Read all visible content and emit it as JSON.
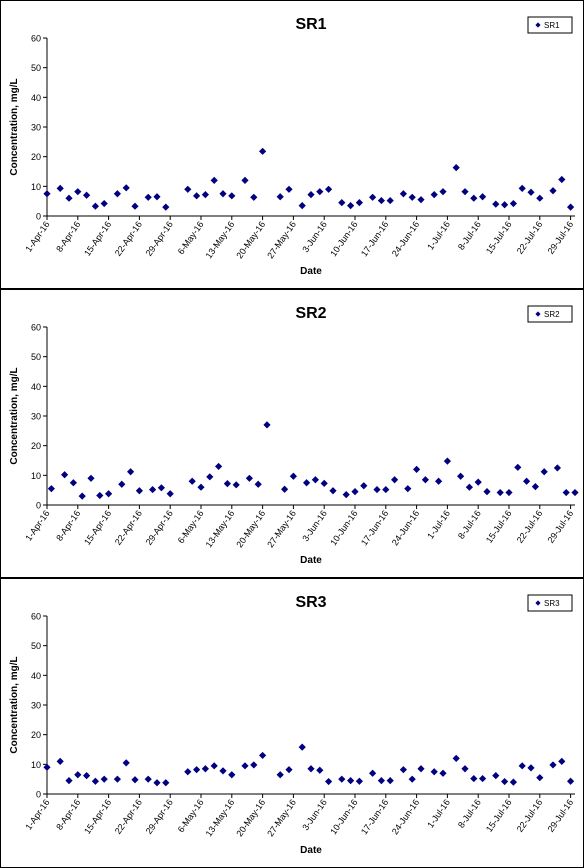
{
  "chart_data": [
    {
      "type": "scatter",
      "title": "SR1",
      "xlabel": "Date",
      "ylabel": "Concentration, mg/L",
      "ylim": [
        0,
        60
      ],
      "yticks": [
        0,
        10,
        20,
        30,
        40,
        50,
        60
      ],
      "xlim": [
        "2016-04-01",
        "2016-07-30"
      ],
      "xtick_labels": [
        "1-Apr-16",
        "8-Apr-16",
        "15-Apr-16",
        "22-Apr-16",
        "29-Apr-16",
        "6-May-16",
        "13-May-16",
        "20-May-16",
        "27-May-16",
        "3-Jun-16",
        "10-Jun-16",
        "17-Jun-16",
        "24-Jun-16",
        "1-Jul-16",
        "8-Jul-16",
        "15-Jul-16",
        "22-Jul-16",
        "29-Jul-16"
      ],
      "legend": "top-right",
      "marker_color": "#000080",
      "series": [
        {
          "name": "SR1",
          "x": [
            "2016-04-01",
            "2016-04-04",
            "2016-04-06",
            "2016-04-08",
            "2016-04-10",
            "2016-04-12",
            "2016-04-14",
            "2016-04-17",
            "2016-04-19",
            "2016-04-21",
            "2016-04-24",
            "2016-04-26",
            "2016-04-28",
            "2016-05-03",
            "2016-05-05",
            "2016-05-07",
            "2016-05-09",
            "2016-05-11",
            "2016-05-13",
            "2016-05-16",
            "2016-05-18",
            "2016-05-20",
            "2016-05-24",
            "2016-05-26",
            "2016-05-29",
            "2016-05-31",
            "2016-06-02",
            "2016-06-04",
            "2016-06-07",
            "2016-06-09",
            "2016-06-11",
            "2016-06-14",
            "2016-06-16",
            "2016-06-18",
            "2016-06-21",
            "2016-06-23",
            "2016-06-25",
            "2016-06-28",
            "2016-06-30",
            "2016-07-03",
            "2016-07-05",
            "2016-07-07",
            "2016-07-09",
            "2016-07-12",
            "2016-07-14",
            "2016-07-16",
            "2016-07-18",
            "2016-07-20",
            "2016-07-22",
            "2016-07-25",
            "2016-07-27",
            "2016-07-29"
          ],
          "y": [
            7.5,
            9.3,
            6,
            8.2,
            7,
            3.3,
            4.2,
            7.5,
            9.5,
            3.3,
            6.3,
            6.5,
            3,
            9,
            6.8,
            7.2,
            12,
            7.5,
            6.8,
            12,
            6.3,
            21.8,
            6.5,
            9,
            3.5,
            7.2,
            8.2,
            9,
            4.5,
            3.5,
            4.5,
            6.3,
            5.2,
            5.2,
            7.5,
            6.3,
            5.5,
            7.2,
            8.2,
            16.3,
            8.2,
            6,
            6.5,
            4,
            3.8,
            4.2,
            9.3,
            8,
            6,
            8.5,
            12.3,
            3
          ]
        }
      ]
    },
    {
      "type": "scatter",
      "title": "SR2",
      "xlabel": "Date",
      "ylabel": "Concentration, mg/L",
      "ylim": [
        0,
        60
      ],
      "yticks": [
        0,
        10,
        20,
        30,
        40,
        50,
        60
      ],
      "xlim": [
        "2016-04-01",
        "2016-07-30"
      ],
      "xtick_labels": [
        "1-Apr-16",
        "8-Apr-16",
        "15-Apr-16",
        "22-Apr-16",
        "29-Apr-16",
        "6-May-16",
        "13-May-16",
        "20-May-16",
        "27-May-16",
        "3-Jun-16",
        "10-Jun-16",
        "17-Jun-16",
        "24-Jun-16",
        "1-Jul-16",
        "8-Jul-16",
        "15-Jul-16",
        "22-Jul-16",
        "29-Jul-16"
      ],
      "legend": "top-right",
      "marker_color": "#000080",
      "series": [
        {
          "name": "SR2",
          "x": [
            "2016-04-02",
            "2016-04-05",
            "2016-04-07",
            "2016-04-09",
            "2016-04-11",
            "2016-04-13",
            "2016-04-15",
            "2016-04-18",
            "2016-04-20",
            "2016-04-22",
            "2016-04-25",
            "2016-04-27",
            "2016-04-29",
            "2016-05-04",
            "2016-05-06",
            "2016-05-08",
            "2016-05-10",
            "2016-05-12",
            "2016-05-14",
            "2016-05-17",
            "2016-05-19",
            "2016-05-21",
            "2016-05-25",
            "2016-05-27",
            "2016-05-30",
            "2016-06-01",
            "2016-06-03",
            "2016-06-05",
            "2016-06-08",
            "2016-06-10",
            "2016-06-12",
            "2016-06-15",
            "2016-06-17",
            "2016-06-19",
            "2016-06-22",
            "2016-06-24",
            "2016-06-26",
            "2016-06-29",
            "2016-07-01",
            "2016-07-04",
            "2016-07-06",
            "2016-07-08",
            "2016-07-10",
            "2016-07-13",
            "2016-07-15",
            "2016-07-17",
            "2016-07-19",
            "2016-07-21",
            "2016-07-23",
            "2016-07-26",
            "2016-07-28",
            "2016-07-30"
          ],
          "y": [
            5.5,
            10.2,
            7.5,
            3,
            9,
            3.2,
            3.8,
            7,
            11.2,
            4.8,
            5.2,
            5.8,
            3.8,
            8,
            6,
            9.5,
            13,
            7.2,
            6.8,
            9,
            7,
            27,
            5.3,
            9.7,
            7.5,
            8.5,
            7.3,
            4.8,
            3.5,
            4.5,
            6.5,
            5.2,
            5.2,
            8.5,
            5.5,
            12,
            8.5,
            8,
            14.8,
            9.7,
            6,
            7.7,
            4.5,
            4.2,
            4.2,
            12.7,
            8,
            6.2,
            11.2,
            12.5,
            4.2,
            4.2
          ]
        }
      ]
    },
    {
      "type": "scatter",
      "title": "SR3",
      "xlabel": "Date",
      "ylabel": "Concentration, mg/L",
      "ylim": [
        0,
        60
      ],
      "yticks": [
        0,
        10,
        20,
        30,
        40,
        50,
        60
      ],
      "xlim": [
        "2016-04-01",
        "2016-07-30"
      ],
      "xtick_labels": [
        "1-Apr-16",
        "8-Apr-16",
        "15-Apr-16",
        "22-Apr-16",
        "29-Apr-16",
        "6-May-16",
        "13-May-16",
        "20-May-16",
        "27-May-16",
        "3-Jun-16",
        "10-Jun-16",
        "17-Jun-16",
        "24-Jun-16",
        "1-Jul-16",
        "8-Jul-16",
        "15-Jul-16",
        "22-Jul-16",
        "29-Jul-16"
      ],
      "legend": "top-right",
      "marker_color": "#000080",
      "series": [
        {
          "name": "SR3",
          "x": [
            "2016-04-01",
            "2016-04-04",
            "2016-04-06",
            "2016-04-08",
            "2016-04-10",
            "2016-04-12",
            "2016-04-14",
            "2016-04-17",
            "2016-04-19",
            "2016-04-21",
            "2016-04-24",
            "2016-04-26",
            "2016-04-28",
            "2016-05-03",
            "2016-05-05",
            "2016-05-07",
            "2016-05-09",
            "2016-05-11",
            "2016-05-13",
            "2016-05-16",
            "2016-05-18",
            "2016-05-20",
            "2016-05-24",
            "2016-05-26",
            "2016-05-29",
            "2016-05-31",
            "2016-06-02",
            "2016-06-04",
            "2016-06-07",
            "2016-06-09",
            "2016-06-11",
            "2016-06-14",
            "2016-06-16",
            "2016-06-18",
            "2016-06-21",
            "2016-06-23",
            "2016-06-25",
            "2016-06-28",
            "2016-06-30",
            "2016-07-03",
            "2016-07-05",
            "2016-07-07",
            "2016-07-09",
            "2016-07-12",
            "2016-07-14",
            "2016-07-16",
            "2016-07-18",
            "2016-07-20",
            "2016-07-22",
            "2016-07-25",
            "2016-07-27",
            "2016-07-29"
          ],
          "y": [
            9,
            11,
            4.5,
            6.5,
            6.2,
            4.3,
            5,
            5,
            10.5,
            4.8,
            5,
            3.8,
            3.8,
            7.5,
            8.2,
            8.5,
            9.5,
            7.8,
            6.5,
            9.5,
            9.8,
            13,
            6.5,
            8.2,
            15.8,
            8.5,
            8,
            4.2,
            5,
            4.5,
            4.3,
            7,
            4.5,
            4.5,
            8.2,
            5,
            8.5,
            7.5,
            7,
            12,
            8.5,
            5.2,
            5.2,
            6.2,
            4.2,
            4,
            9.5,
            8.8,
            5.5,
            9.8,
            11,
            4.3
          ]
        }
      ]
    }
  ]
}
